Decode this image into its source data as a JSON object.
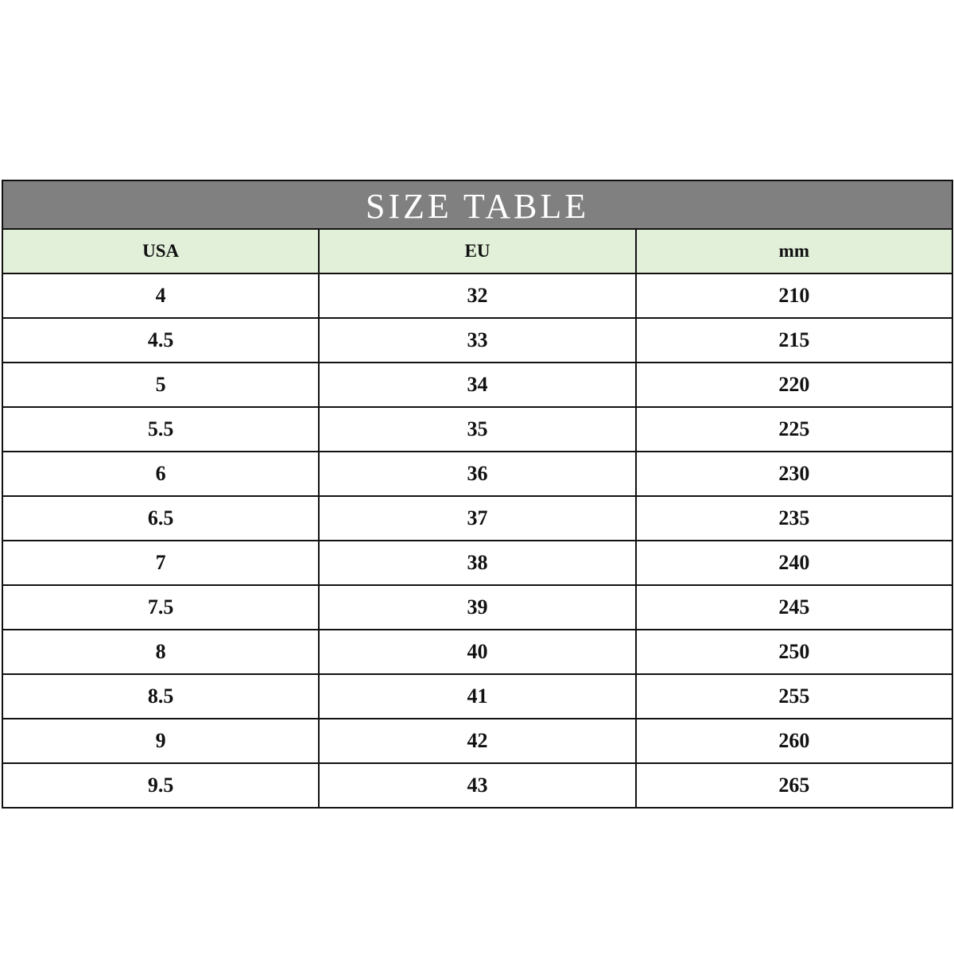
{
  "title": "SIZE TABLE",
  "columns": [
    "USA",
    "EU",
    "mm"
  ],
  "rows": [
    [
      "4",
      "32",
      "210"
    ],
    [
      "4.5",
      "33",
      "215"
    ],
    [
      "5",
      "34",
      "220"
    ],
    [
      "5.5",
      "35",
      "225"
    ],
    [
      "6",
      "36",
      "230"
    ],
    [
      "6.5",
      "37",
      "235"
    ],
    [
      "7",
      "38",
      "240"
    ],
    [
      "7.5",
      "39",
      "245"
    ],
    [
      "8",
      "40",
      "250"
    ],
    [
      "8.5",
      "41",
      "255"
    ],
    [
      "9",
      "42",
      "260"
    ],
    [
      "9.5",
      "43",
      "265"
    ]
  ],
  "colors": {
    "title_bg": "#808080",
    "header_bg": "#e2f0d9"
  }
}
